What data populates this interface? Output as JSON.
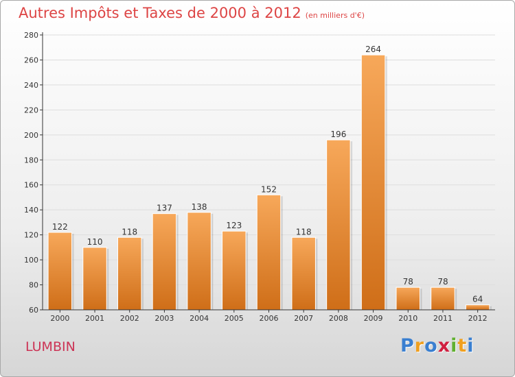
{
  "chart_data": {
    "type": "bar",
    "title": "Autres Impôts et Taxes de 2000 à 2012",
    "subtitle": "(en milliers d'€)",
    "categories": [
      "2000",
      "2001",
      "2002",
      "2003",
      "2004",
      "2005",
      "2006",
      "2007",
      "2008",
      "2009",
      "2010",
      "2011",
      "2012"
    ],
    "values": [
      122,
      110,
      118,
      137,
      138,
      123,
      152,
      118,
      196,
      264,
      78,
      78,
      64
    ],
    "ylim": [
      60,
      280
    ],
    "yticks": [
      60,
      80,
      100,
      120,
      140,
      160,
      180,
      200,
      220,
      240,
      260,
      280
    ],
    "grid": true,
    "xlabel": "",
    "ylabel": ""
  },
  "commune": "LUMBIN",
  "logo": {
    "letters": [
      "P",
      "r",
      "o",
      "x",
      "i",
      "t",
      "i"
    ],
    "colors": [
      "#3a7fd0",
      "#f0a020",
      "#3a7fd0",
      "#d02040",
      "#60b030",
      "#f0a020",
      "#3a7fd0"
    ]
  },
  "colors": {
    "bar_top": "#f7a85a",
    "bar_bottom": "#cf6e18",
    "grid": "#dddddd",
    "axis": "#333333"
  }
}
